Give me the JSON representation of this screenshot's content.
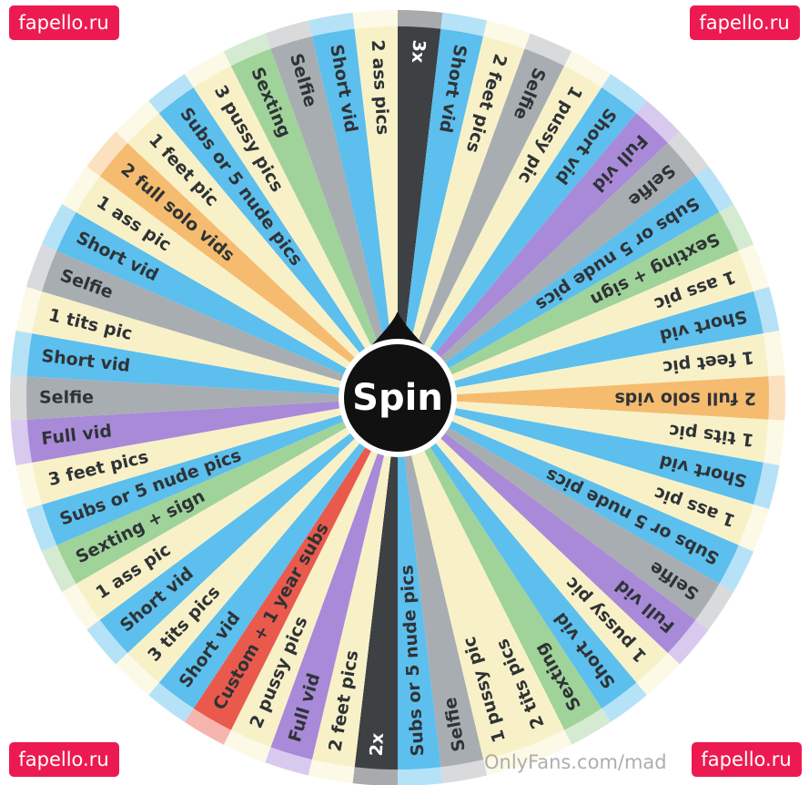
{
  "wheel": {
    "button": "Spin",
    "segments": [
      {
        "label": "3x",
        "color": "#3d4144"
      },
      {
        "label": "Short vid",
        "color": "#5cbfee"
      },
      {
        "label": "2 feet pics",
        "color": "#f8f1c8"
      },
      {
        "label": "Selfie",
        "color": "#a8adb2"
      },
      {
        "label": "1 pussy pic",
        "color": "#f8f1c8"
      },
      {
        "label": "Short vid",
        "color": "#5cbfee"
      },
      {
        "label": "Full vid",
        "color": "#a98ad9"
      },
      {
        "label": "Selfie",
        "color": "#a8adb2"
      },
      {
        "label": "Subs or 5 nude pics",
        "color": "#5cbfee"
      },
      {
        "label": "Sexting + sign",
        "color": "#9fd39a"
      },
      {
        "label": "1 ass pic",
        "color": "#f8f1c8"
      },
      {
        "label": "Short vid",
        "color": "#5cbfee"
      },
      {
        "label": "1 feet pic",
        "color": "#f8f1c8"
      },
      {
        "label": "2 full solo vids",
        "color": "#f5bc70"
      },
      {
        "label": "1 tits pic",
        "color": "#f8f1c8"
      },
      {
        "label": "Short vid",
        "color": "#5cbfee"
      },
      {
        "label": "1 ass pic",
        "color": "#f8f1c8"
      },
      {
        "label": "Subs or 5 nude pics",
        "color": "#5cbfee"
      },
      {
        "label": "Selfie",
        "color": "#a8adb2"
      },
      {
        "label": "Full vid",
        "color": "#a98ad9"
      },
      {
        "label": "1 pussy pic",
        "color": "#f8f1c8"
      },
      {
        "label": "Short vid",
        "color": "#5cbfee"
      },
      {
        "label": "Sexting",
        "color": "#9fd39a"
      },
      {
        "label": "2 tits pics",
        "color": "#f8f1c8"
      },
      {
        "label": "1 pussy pic",
        "color": "#f8f1c8"
      },
      {
        "label": "Selfie",
        "color": "#a8adb2"
      },
      {
        "label": "Subs or 5 nude pics",
        "color": "#5cbfee"
      },
      {
        "label": "2x",
        "color": "#3d4144"
      },
      {
        "label": "2 feet pics",
        "color": "#f8f1c8"
      },
      {
        "label": "Full vid",
        "color": "#a98ad9"
      },
      {
        "label": "2 pussy pics",
        "color": "#f8f1c8"
      },
      {
        "label": "Custom + 1 year subs",
        "color": "#ea5a4c"
      },
      {
        "label": "Short vid",
        "color": "#5cbfee"
      },
      {
        "label": "3 tits pics",
        "color": "#f8f1c8"
      },
      {
        "label": "Short vid",
        "color": "#5cbfee"
      },
      {
        "label": "1 ass pic",
        "color": "#f8f1c8"
      },
      {
        "label": "Sexting + sign",
        "color": "#9fd39a"
      },
      {
        "label": "Subs or 5 nude pics",
        "color": "#5cbfee"
      },
      {
        "label": "3 feet pics",
        "color": "#f8f1c8"
      },
      {
        "label": "Full vid",
        "color": "#a98ad9"
      },
      {
        "label": "Selfie",
        "color": "#a8adb2"
      },
      {
        "label": "Short vid",
        "color": "#5cbfee"
      },
      {
        "label": "1 tits pic",
        "color": "#f8f1c8"
      },
      {
        "label": "Selfie",
        "color": "#a8adb2"
      },
      {
        "label": "Short vid",
        "color": "#5cbfee"
      },
      {
        "label": "1 ass pic",
        "color": "#f8f1c8"
      },
      {
        "label": "2 full solo vids",
        "color": "#f5bc70"
      },
      {
        "label": "1 feet pic",
        "color": "#f8f1c8"
      },
      {
        "label": "Subs or 5 nude pics",
        "color": "#5cbfee"
      },
      {
        "label": "3 pussy pics",
        "color": "#f8f1c8"
      },
      {
        "label": "Sexting",
        "color": "#9fd39a"
      },
      {
        "label": "Selfie",
        "color": "#a8adb2"
      },
      {
        "label": "Short vid",
        "color": "#5cbfee"
      },
      {
        "label": "2 ass pics",
        "color": "#f8f1c8"
      }
    ]
  },
  "watermarks": {
    "corner": "fapello.ru",
    "footer": "OnlyFans.com/mad"
  }
}
